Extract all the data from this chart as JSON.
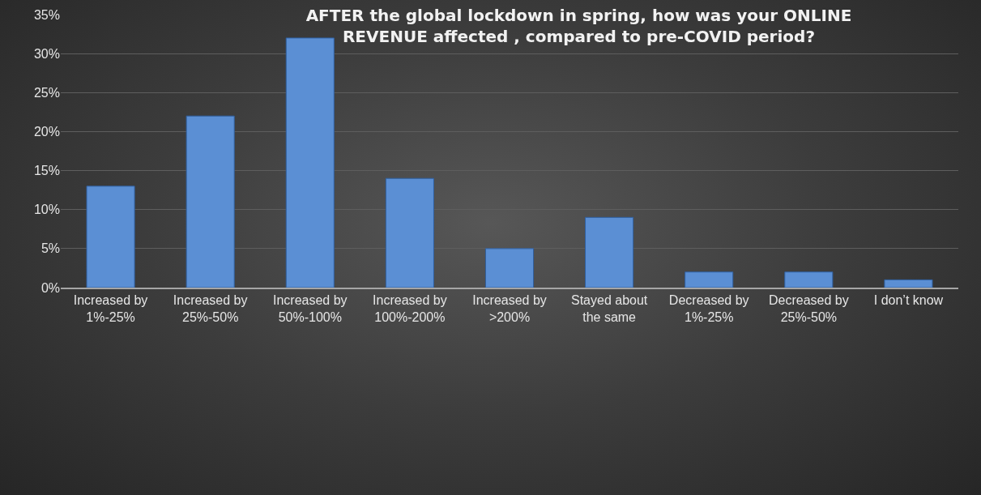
{
  "chart_data": {
    "type": "bar",
    "title": "AFTER the global lockdown in spring, how was your ONLINE REVENUE affected , compared to pre-COVID period?",
    "categories": [
      "Increased by 1%-25%",
      "Increased by 25%-50%",
      "Increased by 50%-100%",
      "Increased by 100%-200%",
      "Increased by >200%",
      "Stayed about the same",
      "Decreased by 1%-25%",
      "Decreased by 25%-50%",
      "I don’t know"
    ],
    "values": [
      13,
      22,
      32,
      14,
      5,
      9,
      2,
      2,
      1
    ],
    "color": "#5b8fd4",
    "ylim": [
      0,
      35
    ],
    "yticks": [
      {
        "value": 0,
        "label": "0%"
      },
      {
        "value": 5,
        "label": "5%"
      },
      {
        "value": 10,
        "label": "10%"
      },
      {
        "value": 15,
        "label": "15%"
      },
      {
        "value": 20,
        "label": "20%"
      },
      {
        "value": 25,
        "label": "25%"
      },
      {
        "value": 30,
        "label": "30%"
      },
      {
        "value": 35,
        "label": "35%"
      }
    ],
    "grid": true
  }
}
